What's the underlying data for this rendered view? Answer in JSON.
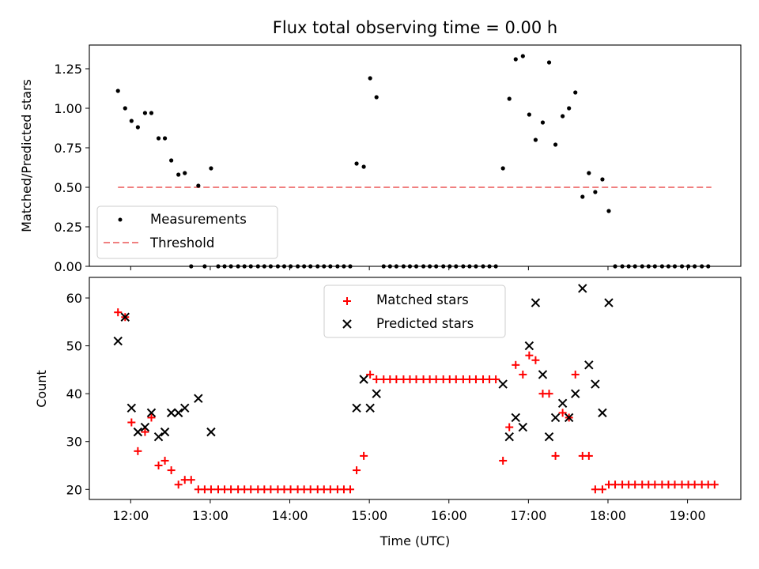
{
  "chart_data": [
    {
      "type": "scatter",
      "title": "Flux total observing time = 0.00 h",
      "xlabel": "",
      "ylabel": "Matched/Predicted stars",
      "ylim": [
        0,
        1.4
      ],
      "yticks": [
        0.0,
        0.25,
        0.5,
        0.75,
        1.0,
        1.25
      ],
      "ytick_labels": [
        "0.00",
        "0.25",
        "0.50",
        "0.75",
        "1.00",
        "1.25"
      ],
      "xlim_hours": [
        11.48,
        19.67
      ],
      "legend": [
        "Measurements",
        "Threshold"
      ],
      "legend_position": "lower-left",
      "threshold": {
        "name": "Threshold",
        "value": 0.5,
        "x_start": 11.84,
        "x_end": 19.3,
        "color": "#f08080",
        "style": "dashed"
      },
      "series": [
        {
          "name": "Measurements",
          "color": "#000000",
          "points": [
            [
              11.84,
              1.11
            ],
            [
              11.93,
              1.0
            ],
            [
              12.01,
              0.92
            ],
            [
              12.09,
              0.88
            ],
            [
              12.18,
              0.97
            ],
            [
              12.26,
              0.97
            ],
            [
              12.35,
              0.81
            ],
            [
              12.43,
              0.81
            ],
            [
              12.51,
              0.67
            ],
            [
              12.6,
              0.58
            ],
            [
              12.68,
              0.59
            ],
            [
              12.76,
              0.0
            ],
            [
              12.85,
              0.51
            ],
            [
              12.93,
              0.0
            ],
            [
              13.01,
              0.62
            ],
            [
              13.1,
              0.0
            ],
            [
              13.18,
              0.0
            ],
            [
              13.26,
              0.0
            ],
            [
              13.35,
              0.0
            ],
            [
              13.43,
              0.0
            ],
            [
              13.51,
              0.0
            ],
            [
              13.6,
              0.0
            ],
            [
              13.68,
              0.0
            ],
            [
              13.76,
              0.0
            ],
            [
              13.85,
              0.0
            ],
            [
              13.93,
              0.0
            ],
            [
              14.01,
              0.0
            ],
            [
              14.1,
              0.0
            ],
            [
              14.18,
              0.0
            ],
            [
              14.26,
              0.0
            ],
            [
              14.35,
              0.0
            ],
            [
              14.43,
              0.0
            ],
            [
              14.51,
              0.0
            ],
            [
              14.6,
              0.0
            ],
            [
              14.68,
              0.0
            ],
            [
              14.76,
              0.0
            ],
            [
              14.84,
              0.65
            ],
            [
              14.93,
              0.63
            ],
            [
              15.01,
              1.19
            ],
            [
              15.09,
              1.07
            ],
            [
              15.18,
              0.0
            ],
            [
              15.26,
              0.0
            ],
            [
              15.34,
              0.0
            ],
            [
              15.43,
              0.0
            ],
            [
              15.51,
              0.0
            ],
            [
              15.59,
              0.0
            ],
            [
              15.68,
              0.0
            ],
            [
              15.76,
              0.0
            ],
            [
              15.84,
              0.0
            ],
            [
              15.93,
              0.0
            ],
            [
              16.01,
              0.0
            ],
            [
              16.09,
              0.0
            ],
            [
              16.18,
              0.0
            ],
            [
              16.26,
              0.0
            ],
            [
              16.34,
              0.0
            ],
            [
              16.43,
              0.0
            ],
            [
              16.51,
              0.0
            ],
            [
              16.59,
              0.0
            ],
            [
              16.68,
              0.62
            ],
            [
              16.76,
              1.06
            ],
            [
              16.84,
              1.31
            ],
            [
              16.93,
              1.33
            ],
            [
              17.01,
              0.96
            ],
            [
              17.09,
              0.8
            ],
            [
              17.18,
              0.91
            ],
            [
              17.26,
              1.29
            ],
            [
              17.34,
              0.77
            ],
            [
              17.43,
              0.95
            ],
            [
              17.51,
              1.0
            ],
            [
              17.59,
              1.1
            ],
            [
              17.68,
              0.44
            ],
            [
              17.76,
              0.59
            ],
            [
              17.84,
              0.47
            ],
            [
              17.93,
              0.55
            ],
            [
              18.01,
              0.35
            ],
            [
              18.09,
              0.0
            ],
            [
              18.18,
              0.0
            ],
            [
              18.26,
              0.0
            ],
            [
              18.34,
              0.0
            ],
            [
              18.43,
              0.0
            ],
            [
              18.51,
              0.0
            ],
            [
              18.59,
              0.0
            ],
            [
              18.68,
              0.0
            ],
            [
              18.76,
              0.0
            ],
            [
              18.84,
              0.0
            ],
            [
              18.93,
              0.0
            ],
            [
              19.01,
              0.0
            ],
            [
              19.09,
              0.0
            ],
            [
              19.18,
              0.0
            ],
            [
              19.26,
              0.0
            ]
          ]
        }
      ]
    },
    {
      "type": "scatter",
      "title": "",
      "xlabel": "Time (UTC)",
      "ylabel": "Count",
      "ylim": [
        17.9,
        64.3
      ],
      "yticks": [
        20,
        30,
        40,
        50,
        60
      ],
      "ytick_labels": [
        "20",
        "30",
        "40",
        "50",
        "60"
      ],
      "xlim_hours": [
        11.48,
        19.67
      ],
      "xticks_hours": [
        12,
        13,
        14,
        15,
        16,
        17,
        18,
        19
      ],
      "xtick_labels": [
        "12:00",
        "13:00",
        "14:00",
        "15:00",
        "16:00",
        "17:00",
        "18:00",
        "19:00"
      ],
      "legend": [
        "Matched stars",
        "Predicted stars"
      ],
      "legend_position": "upper-center",
      "series": [
        {
          "name": "Matched stars",
          "marker": "plus",
          "color": "#ff0000",
          "points": [
            [
              11.84,
              57
            ],
            [
              11.93,
              56
            ],
            [
              12.01,
              34
            ],
            [
              12.09,
              28
            ],
            [
              12.18,
              32
            ],
            [
              12.26,
              35
            ],
            [
              12.35,
              25
            ],
            [
              12.43,
              26
            ],
            [
              12.51,
              24
            ],
            [
              12.6,
              21
            ],
            [
              12.68,
              22
            ],
            [
              12.76,
              22
            ],
            [
              12.85,
              20
            ],
            [
              12.93,
              20
            ],
            [
              13.01,
              20
            ],
            [
              13.1,
              20
            ],
            [
              13.18,
              20
            ],
            [
              13.26,
              20
            ],
            [
              13.35,
              20
            ],
            [
              13.43,
              20
            ],
            [
              13.51,
              20
            ],
            [
              13.6,
              20
            ],
            [
              13.68,
              20
            ],
            [
              13.76,
              20
            ],
            [
              13.85,
              20
            ],
            [
              13.93,
              20
            ],
            [
              14.01,
              20
            ],
            [
              14.1,
              20
            ],
            [
              14.18,
              20
            ],
            [
              14.26,
              20
            ],
            [
              14.35,
              20
            ],
            [
              14.43,
              20
            ],
            [
              14.51,
              20
            ],
            [
              14.6,
              20
            ],
            [
              14.68,
              20
            ],
            [
              14.76,
              20
            ],
            [
              14.84,
              24
            ],
            [
              14.93,
              27
            ],
            [
              15.01,
              44
            ],
            [
              15.09,
              43
            ],
            [
              15.18,
              43
            ],
            [
              15.26,
              43
            ],
            [
              15.34,
              43
            ],
            [
              15.43,
              43
            ],
            [
              15.51,
              43
            ],
            [
              15.59,
              43
            ],
            [
              15.68,
              43
            ],
            [
              15.76,
              43
            ],
            [
              15.84,
              43
            ],
            [
              15.93,
              43
            ],
            [
              16.01,
              43
            ],
            [
              16.09,
              43
            ],
            [
              16.18,
              43
            ],
            [
              16.26,
              43
            ],
            [
              16.34,
              43
            ],
            [
              16.43,
              43
            ],
            [
              16.51,
              43
            ],
            [
              16.59,
              43
            ],
            [
              16.68,
              26
            ],
            [
              16.76,
              33
            ],
            [
              16.84,
              46
            ],
            [
              16.93,
              44
            ],
            [
              17.01,
              48
            ],
            [
              17.09,
              47
            ],
            [
              17.18,
              40
            ],
            [
              17.26,
              40
            ],
            [
              17.34,
              27
            ],
            [
              17.43,
              36
            ],
            [
              17.51,
              35
            ],
            [
              17.59,
              44
            ],
            [
              17.68,
              27
            ],
            [
              17.76,
              27
            ],
            [
              17.84,
              20
            ],
            [
              17.93,
              20
            ],
            [
              18.01,
              21
            ],
            [
              18.09,
              21
            ],
            [
              18.18,
              21
            ],
            [
              18.26,
              21
            ],
            [
              18.34,
              21
            ],
            [
              18.43,
              21
            ],
            [
              18.51,
              21
            ],
            [
              18.59,
              21
            ],
            [
              18.68,
              21
            ],
            [
              18.76,
              21
            ],
            [
              18.84,
              21
            ],
            [
              18.93,
              21
            ],
            [
              19.01,
              21
            ],
            [
              19.09,
              21
            ],
            [
              19.18,
              21
            ],
            [
              19.26,
              21
            ],
            [
              19.34,
              21
            ]
          ]
        },
        {
          "name": "Predicted stars",
          "marker": "x",
          "color": "#000000",
          "points": [
            [
              11.84,
              51
            ],
            [
              11.93,
              56
            ],
            [
              12.01,
              37
            ],
            [
              12.09,
              32
            ],
            [
              12.18,
              33
            ],
            [
              12.26,
              36
            ],
            [
              12.35,
              31
            ],
            [
              12.43,
              32
            ],
            [
              12.51,
              36
            ],
            [
              12.6,
              36
            ],
            [
              12.68,
              37
            ],
            [
              12.85,
              39
            ],
            [
              13.01,
              32
            ],
            [
              14.84,
              37
            ],
            [
              14.93,
              43
            ],
            [
              15.01,
              37
            ],
            [
              15.09,
              40
            ],
            [
              16.68,
              42
            ],
            [
              16.76,
              31
            ],
            [
              16.84,
              35
            ],
            [
              16.93,
              33
            ],
            [
              17.01,
              50
            ],
            [
              17.09,
              59
            ],
            [
              17.18,
              44
            ],
            [
              17.26,
              31
            ],
            [
              17.34,
              35
            ],
            [
              17.43,
              38
            ],
            [
              17.51,
              35
            ],
            [
              17.59,
              40
            ],
            [
              17.68,
              62
            ],
            [
              17.76,
              46
            ],
            [
              17.84,
              42
            ],
            [
              17.93,
              36
            ],
            [
              18.01,
              59
            ]
          ]
        }
      ]
    }
  ]
}
